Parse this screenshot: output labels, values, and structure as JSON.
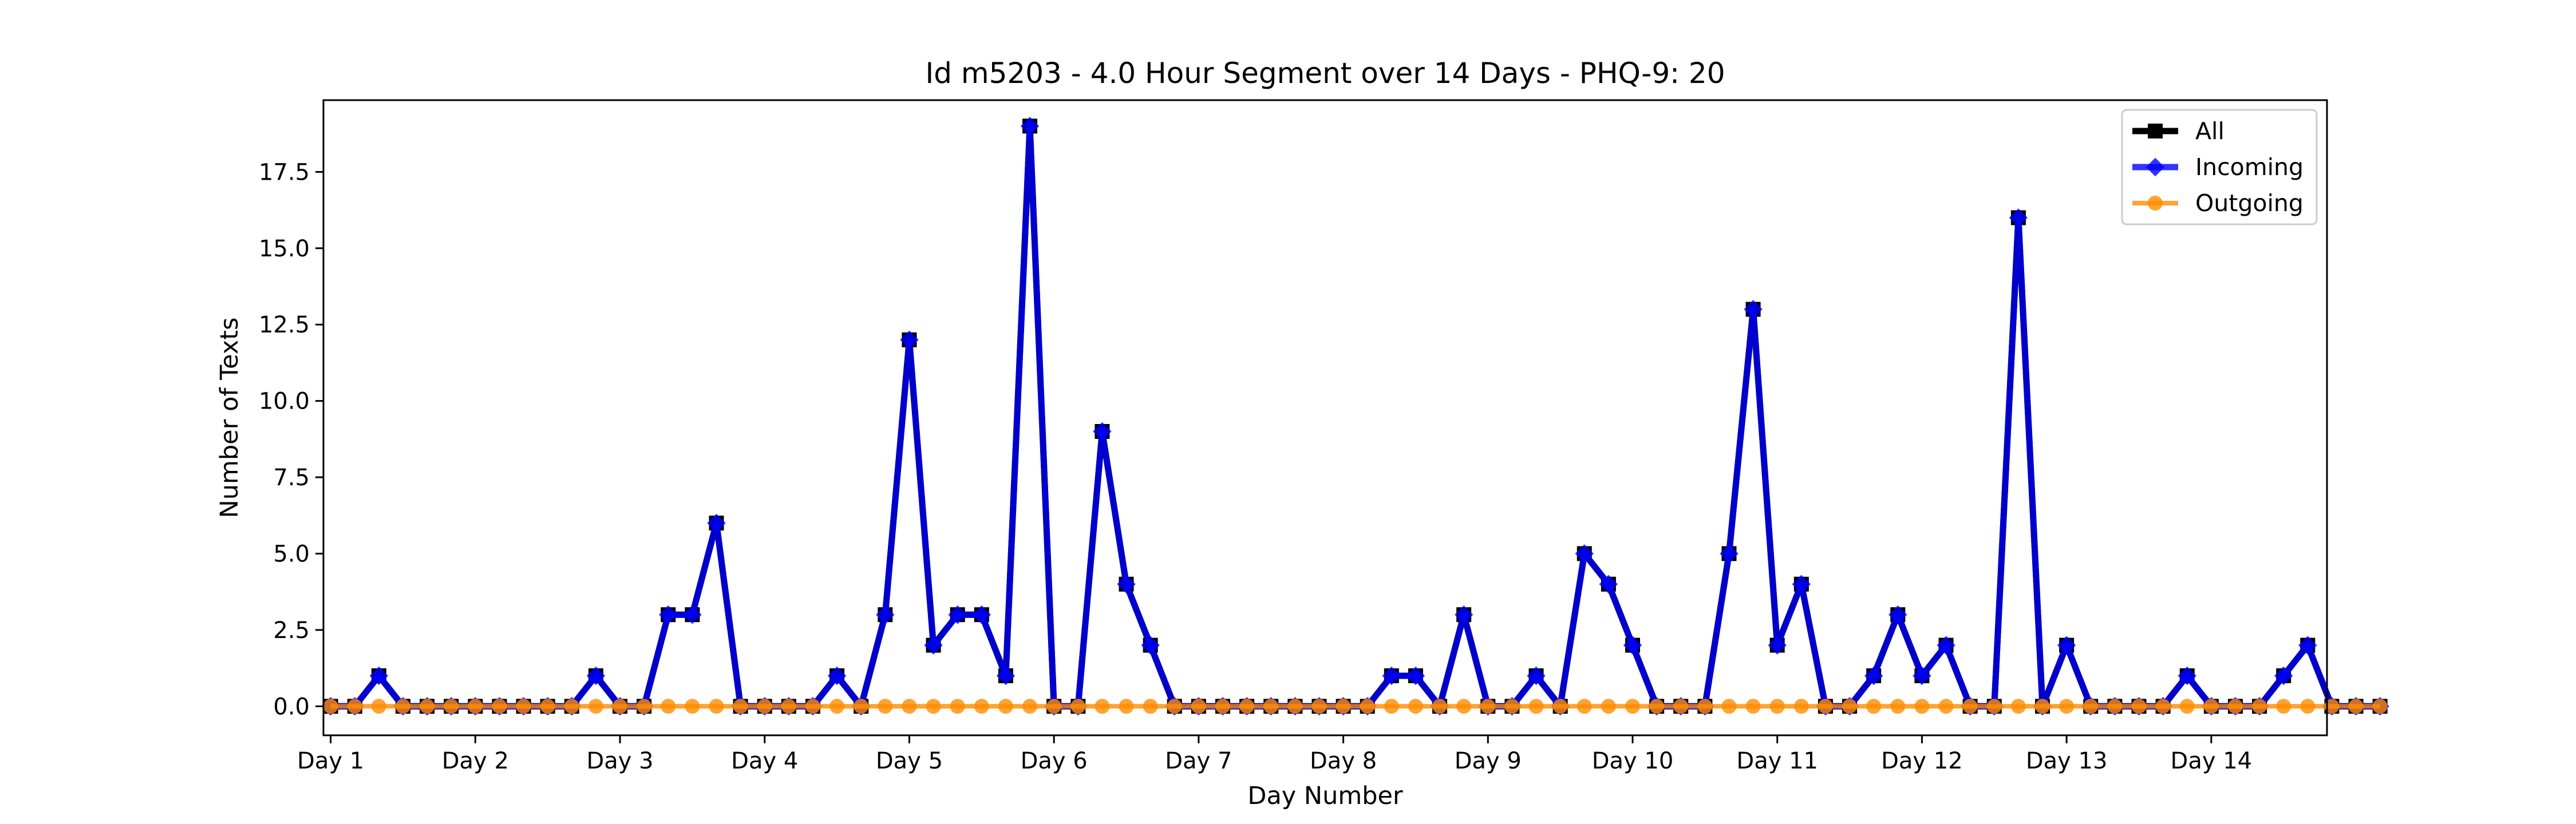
{
  "chart_data": {
    "type": "line",
    "title": "Id m5203 - 4.0 Hour Segment over 14 Days - PHQ-9: 20",
    "xlabel": "Day Number",
    "ylabel": "Number of Texts",
    "xlim": [
      -0.05,
      13.8
    ],
    "ylim": [
      -0.95,
      19.85
    ],
    "x_ticks": [
      {
        "value": 0,
        "label": "Day 1"
      },
      {
        "value": 1,
        "label": "Day 2"
      },
      {
        "value": 2,
        "label": "Day 3"
      },
      {
        "value": 3,
        "label": "Day 4"
      },
      {
        "value": 4,
        "label": "Day 5"
      },
      {
        "value": 5,
        "label": "Day 6"
      },
      {
        "value": 6,
        "label": "Day 7"
      },
      {
        "value": 7,
        "label": "Day 8"
      },
      {
        "value": 8,
        "label": "Day 9"
      },
      {
        "value": 9,
        "label": "Day 10"
      },
      {
        "value": 10,
        "label": "Day 11"
      },
      {
        "value": 11,
        "label": "Day 12"
      },
      {
        "value": 12,
        "label": "Day 13"
      },
      {
        "value": 13,
        "label": "Day 14"
      }
    ],
    "y_ticks": [
      {
        "value": 0,
        "label": "0.0"
      },
      {
        "value": 2.5,
        "label": "2.5"
      },
      {
        "value": 5,
        "label": "5.0"
      },
      {
        "value": 7.5,
        "label": "7.5"
      },
      {
        "value": 10,
        "label": "10.0"
      },
      {
        "value": 12.5,
        "label": "12.5"
      },
      {
        "value": 15,
        "label": "15.0"
      },
      {
        "value": 17.5,
        "label": "17.5"
      }
    ],
    "legend_position": "top-right",
    "grid": false,
    "points_per_day": 6,
    "series": [
      {
        "name": "All",
        "color": "#000000",
        "marker": "square",
        "values": [
          0,
          0,
          1,
          0,
          0,
          0,
          0,
          0,
          0,
          0,
          0,
          1,
          0,
          0,
          3,
          3,
          6,
          0,
          0,
          0,
          0,
          1,
          0,
          3,
          12,
          2,
          3,
          3,
          1,
          19,
          0,
          0,
          9,
          4,
          2,
          0,
          0,
          0,
          0,
          0,
          0,
          0,
          0,
          0,
          1,
          1,
          0,
          3,
          0,
          0,
          1,
          0,
          5,
          4,
          2,
          0,
          0,
          0,
          5,
          13,
          2,
          4,
          0,
          0,
          1,
          3,
          1,
          2,
          0,
          0,
          16,
          0,
          2,
          0,
          0,
          0,
          0,
          1,
          0,
          0,
          0,
          1,
          2,
          0,
          0,
          0
        ]
      },
      {
        "name": "Incoming",
        "color": "#0000ff",
        "marker": "diamond",
        "values": [
          0,
          0,
          1,
          0,
          0,
          0,
          0,
          0,
          0,
          0,
          0,
          1,
          0,
          0,
          3,
          3,
          6,
          0,
          0,
          0,
          0,
          1,
          0,
          3,
          12,
          2,
          3,
          3,
          1,
          19,
          0,
          0,
          9,
          4,
          2,
          0,
          0,
          0,
          0,
          0,
          0,
          0,
          0,
          0,
          1,
          1,
          0,
          3,
          0,
          0,
          1,
          0,
          5,
          4,
          2,
          0,
          0,
          0,
          5,
          13,
          2,
          4,
          0,
          0,
          1,
          3,
          1,
          2,
          0,
          0,
          16,
          0,
          2,
          0,
          0,
          0,
          0,
          1,
          0,
          0,
          0,
          1,
          2,
          0,
          0,
          0
        ]
      },
      {
        "name": "Outgoing",
        "color": "#ff8c00",
        "marker": "circle",
        "values": [
          0,
          0,
          0,
          0,
          0,
          0,
          0,
          0,
          0,
          0,
          0,
          0,
          0,
          0,
          0,
          0,
          0,
          0,
          0,
          0,
          0,
          0,
          0,
          0,
          0,
          0,
          0,
          0,
          0,
          0,
          0,
          0,
          0,
          0,
          0,
          0,
          0,
          0,
          0,
          0,
          0,
          0,
          0,
          0,
          0,
          0,
          0,
          0,
          0,
          0,
          0,
          0,
          0,
          0,
          0,
          0,
          0,
          0,
          0,
          0,
          0,
          0,
          0,
          0,
          0,
          0,
          0,
          0,
          0,
          0,
          0,
          0,
          0,
          0,
          0,
          0,
          0,
          0,
          0,
          0,
          0,
          0,
          0,
          0,
          0,
          0
        ]
      }
    ]
  }
}
